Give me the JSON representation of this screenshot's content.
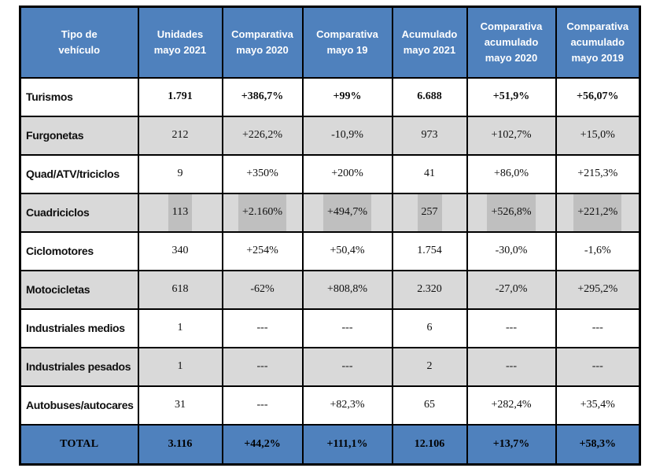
{
  "chart_data": {
    "type": "table",
    "columns": [
      "Tipo de\nvehículo",
      "Unidades\nmayo 2021",
      "Comparativa\nmayo 2020",
      "Comparativa\nmayo 19",
      "Acumulado\nmayo 2021",
      "Comparativa\nacumulado\nmayo 2020",
      "Comparativa\nacumulado\nmayo 2019"
    ],
    "rows": [
      {
        "label": "Turismos",
        "values": [
          "1.791",
          "+386,7%",
          "+99%",
          "6.688",
          "+51,9%",
          "+56,07%"
        ]
      },
      {
        "label": "Furgonetas",
        "values": [
          "212",
          "+226,2%",
          "-10,9%",
          "973",
          "+102,7%",
          "+15,0%"
        ]
      },
      {
        "label": "Quad/ATV/triciclos",
        "values": [
          "9",
          "+350%",
          "+200%",
          "41",
          "+86,0%",
          "+215,3%"
        ]
      },
      {
        "label": "Cuadriciclos",
        "values": [
          "113",
          "+2.160%",
          "+494,7%",
          "257",
          "+526,8%",
          "+221,2%"
        ]
      },
      {
        "label": "Ciclomotores",
        "values": [
          "340",
          "+254%",
          "+50,4%",
          "1.754",
          "-30,0%",
          "-1,6%"
        ]
      },
      {
        "label": "Motocicletas",
        "values": [
          "618",
          "-62%",
          "+808,8%",
          "2.320",
          "-27,0%",
          "+295,2%"
        ]
      },
      {
        "label": "Industriales medios",
        "values": [
          "1",
          "---",
          "---",
          "6",
          "---",
          "---"
        ]
      },
      {
        "label": "Industriales pesados",
        "values": [
          "1",
          "---",
          "---",
          "2",
          "---",
          "---"
        ]
      },
      {
        "label": "Autobuses/autocares",
        "values": [
          "31",
          "---",
          "+82,3%",
          "65",
          "+282,4%",
          "+35,4%"
        ]
      }
    ],
    "total_row": {
      "label": "TOTAL",
      "values": [
        "3.116",
        "+44,2%",
        "+111,1%",
        "12.106",
        "+13,7%",
        "+58,3%"
      ]
    },
    "layout_hints": {
      "highlighted_row": "Cuadriciclos",
      "bold_rows": [
        "Turismos",
        "TOTAL"
      ],
      "shaded_rows": [
        "Furgonetas",
        "Cuadriciclos",
        "Motocicletas",
        "Industriales pesados"
      ]
    },
    "colors": {
      "header_bg": "#4f81bd",
      "header_text": "#ffffff",
      "total_bg": "#4f81bd",
      "alt_row_bg": "#d9d9d9",
      "highlight_band_bg": "#bfbfbf",
      "border": "#000000",
      "body_text": "#0f0f0f"
    }
  }
}
